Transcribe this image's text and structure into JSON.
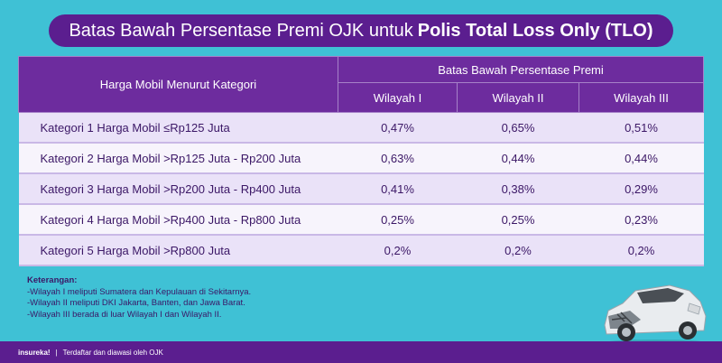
{
  "title": {
    "normal": "Batas Bawah Persentase Premi OJK untuk",
    "bold": "Polis Total Loss Only (TLO)"
  },
  "table": {
    "header_category": "Harga Mobil Menurut Kategori",
    "header_group": "Batas Bawah Persentase Premi",
    "regions": [
      "Wilayah I",
      "Wilayah II",
      "Wilayah III"
    ],
    "rows": [
      {
        "category": "Kategori 1 Harga Mobil ≤Rp125 Juta",
        "values": [
          "0,47%",
          "0,65%",
          "0,51%"
        ]
      },
      {
        "category": "Kategori 2 Harga Mobil >Rp125 Juta - Rp200 Juta",
        "values": [
          "0,63%",
          "0,44%",
          "0,44%"
        ]
      },
      {
        "category": "Kategori 3 Harga Mobil >Rp200 Juta - Rp400 Juta",
        "values": [
          "0,41%",
          "0,38%",
          "0,29%"
        ]
      },
      {
        "category": "Kategori 4 Harga Mobil >Rp400 Juta - Rp800 Juta",
        "values": [
          "0,25%",
          "0,25%",
          "0,23%"
        ]
      },
      {
        "category": "Kategori 5 Harga Mobil >Rp800 Juta",
        "values": [
          "0,2%",
          "0,2%",
          "0,2%"
        ]
      }
    ]
  },
  "notes": {
    "heading": "Keterangan:",
    "lines": [
      "-Wilayah I meliputi Sumatera dan Kepulauan di Sekitarnya.",
      "-Wilayah II meliputi DKI Jakarta, Banten, dan Jawa Barat.",
      "-Wilayah III berada di luar Wilayah I dan Wilayah II."
    ]
  },
  "footer": {
    "brand": "insureka!",
    "separator": "|",
    "text": "Terdaftar dan diawasi oleh OJK"
  },
  "colors": {
    "background": "#3fc1d5",
    "purple": "#5b1e8f",
    "header": "#6d2c9e",
    "row_light": "#f7f4fc",
    "row_shade": "#eae2f8"
  },
  "illustration": "damaged-car-image"
}
